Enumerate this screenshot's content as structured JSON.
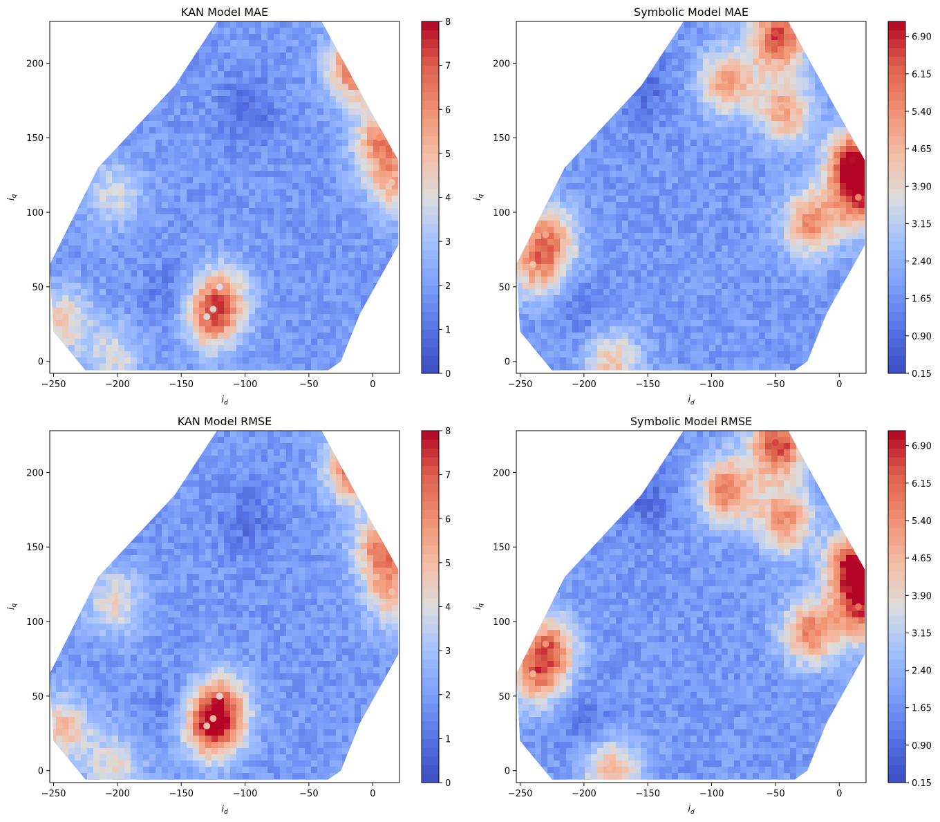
{
  "chart_data": [
    {
      "type": "heatmap",
      "title": "KAN Model MAE",
      "xlabel": "i_d",
      "ylabel": "i_q",
      "xlim": [
        -253,
        21
      ],
      "ylim": [
        -8,
        228
      ],
      "x_ticks": [
        -250,
        -200,
        -150,
        -100,
        -50,
        0
      ],
      "y_ticks": [
        0,
        50,
        100,
        150,
        200
      ],
      "colormap": "coolwarm",
      "colorbar": {
        "min": 0,
        "max": 8,
        "ticks": [
          "0",
          "1",
          "2",
          "3",
          "4",
          "5",
          "6",
          "7",
          "8"
        ]
      },
      "hotspots": [
        {
          "x": -15,
          "y": 200,
          "value": 7.3
        },
        {
          "x": 5,
          "y": 150,
          "value": 6.0
        },
        {
          "x": 15,
          "y": 120,
          "value": 4.8
        },
        {
          "x": -245,
          "y": 30,
          "value": 4.6
        },
        {
          "x": -205,
          "y": 5,
          "value": 3.9
        },
        {
          "x": -125,
          "y": 35,
          "value": 4.4
        },
        {
          "x": -130,
          "y": 30,
          "value": 4.2
        },
        {
          "x": -120,
          "y": 50,
          "value": 3.9
        },
        {
          "x": -205,
          "y": 115,
          "value": 3.9
        },
        {
          "x": -100,
          "y": 170,
          "value": 0.9
        },
        {
          "x": -160,
          "y": 45,
          "value": 1.2
        }
      ]
    },
    {
      "type": "heatmap",
      "title": "Symbolic Model MAE",
      "xlabel": "i_d",
      "ylabel": "i_q",
      "xlim": [
        -253,
        21
      ],
      "ylim": [
        -8,
        228
      ],
      "x_ticks": [
        -250,
        -200,
        -150,
        -100,
        -50,
        0
      ],
      "y_ticks": [
        0,
        50,
        100,
        150,
        200
      ],
      "colormap": "coolwarm",
      "colorbar": {
        "min": 0.15,
        "max": 7.2,
        "ticks": [
          "0.15",
          "0.90",
          "1.65",
          "2.40",
          "3.15",
          "3.90",
          "4.65",
          "5.40",
          "6.15",
          "6.90"
        ]
      },
      "hotspots": [
        {
          "x": -50,
          "y": 220,
          "value": 6.5
        },
        {
          "x": 10,
          "y": 135,
          "value": 7.1
        },
        {
          "x": 15,
          "y": 110,
          "value": 5.6
        },
        {
          "x": -25,
          "y": 95,
          "value": 5.4
        },
        {
          "x": -45,
          "y": 170,
          "value": 5.0
        },
        {
          "x": -230,
          "y": 85,
          "value": 5.0
        },
        {
          "x": -240,
          "y": 65,
          "value": 4.5
        },
        {
          "x": -180,
          "y": 2,
          "value": 4.4
        },
        {
          "x": -90,
          "y": 190,
          "value": 5.2
        },
        {
          "x": -155,
          "y": 185,
          "value": 1.0
        },
        {
          "x": -200,
          "y": 35,
          "value": 1.2
        }
      ]
    },
    {
      "type": "heatmap",
      "title": "KAN Model RMSE",
      "xlabel": "i_d",
      "ylabel": "i_q",
      "xlim": [
        -253,
        21
      ],
      "ylim": [
        -8,
        228
      ],
      "x_ticks": [
        -250,
        -200,
        -150,
        -100,
        -50,
        0
      ],
      "y_ticks": [
        0,
        50,
        100,
        150,
        200
      ],
      "colormap": "coolwarm",
      "colorbar": {
        "min": 0,
        "max": 8,
        "ticks": [
          "0",
          "1",
          "2",
          "3",
          "4",
          "5",
          "6",
          "7",
          "8"
        ]
      },
      "hotspots": [
        {
          "x": -15,
          "y": 205,
          "value": 7.5
        },
        {
          "x": 5,
          "y": 150,
          "value": 6.2
        },
        {
          "x": 15,
          "y": 120,
          "value": 5.0
        },
        {
          "x": -245,
          "y": 30,
          "value": 5.0
        },
        {
          "x": -205,
          "y": 5,
          "value": 4.2
        },
        {
          "x": -125,
          "y": 35,
          "value": 5.2
        },
        {
          "x": -130,
          "y": 30,
          "value": 4.8
        },
        {
          "x": -120,
          "y": 50,
          "value": 4.3
        },
        {
          "x": -205,
          "y": 115,
          "value": 4.3
        },
        {
          "x": -100,
          "y": 170,
          "value": 1.0
        },
        {
          "x": -160,
          "y": 45,
          "value": 1.3
        }
      ]
    },
    {
      "type": "heatmap",
      "title": "Symbolic Model RMSE",
      "xlabel": "i_d",
      "ylabel": "i_q",
      "xlim": [
        -253,
        21
      ],
      "ylim": [
        -8,
        228
      ],
      "x_ticks": [
        -250,
        -200,
        -150,
        -100,
        -50,
        0
      ],
      "y_ticks": [
        0,
        50,
        100,
        150,
        200
      ],
      "colormap": "coolwarm",
      "colorbar": {
        "min": 0.15,
        "max": 7.2,
        "ticks": [
          "0.15",
          "0.90",
          "1.65",
          "2.40",
          "3.15",
          "3.90",
          "4.65",
          "5.40",
          "6.15",
          "6.90"
        ]
      },
      "hotspots": [
        {
          "x": -50,
          "y": 220,
          "value": 6.6
        },
        {
          "x": 10,
          "y": 140,
          "value": 7.2
        },
        {
          "x": 15,
          "y": 110,
          "value": 6.0
        },
        {
          "x": -25,
          "y": 95,
          "value": 5.6
        },
        {
          "x": -45,
          "y": 170,
          "value": 5.4
        },
        {
          "x": -230,
          "y": 85,
          "value": 5.4
        },
        {
          "x": -240,
          "y": 65,
          "value": 4.8
        },
        {
          "x": -180,
          "y": 2,
          "value": 4.6
        },
        {
          "x": -90,
          "y": 190,
          "value": 5.8
        },
        {
          "x": -155,
          "y": 185,
          "value": 1.0
        },
        {
          "x": -200,
          "y": 35,
          "value": 1.2
        }
      ]
    }
  ]
}
